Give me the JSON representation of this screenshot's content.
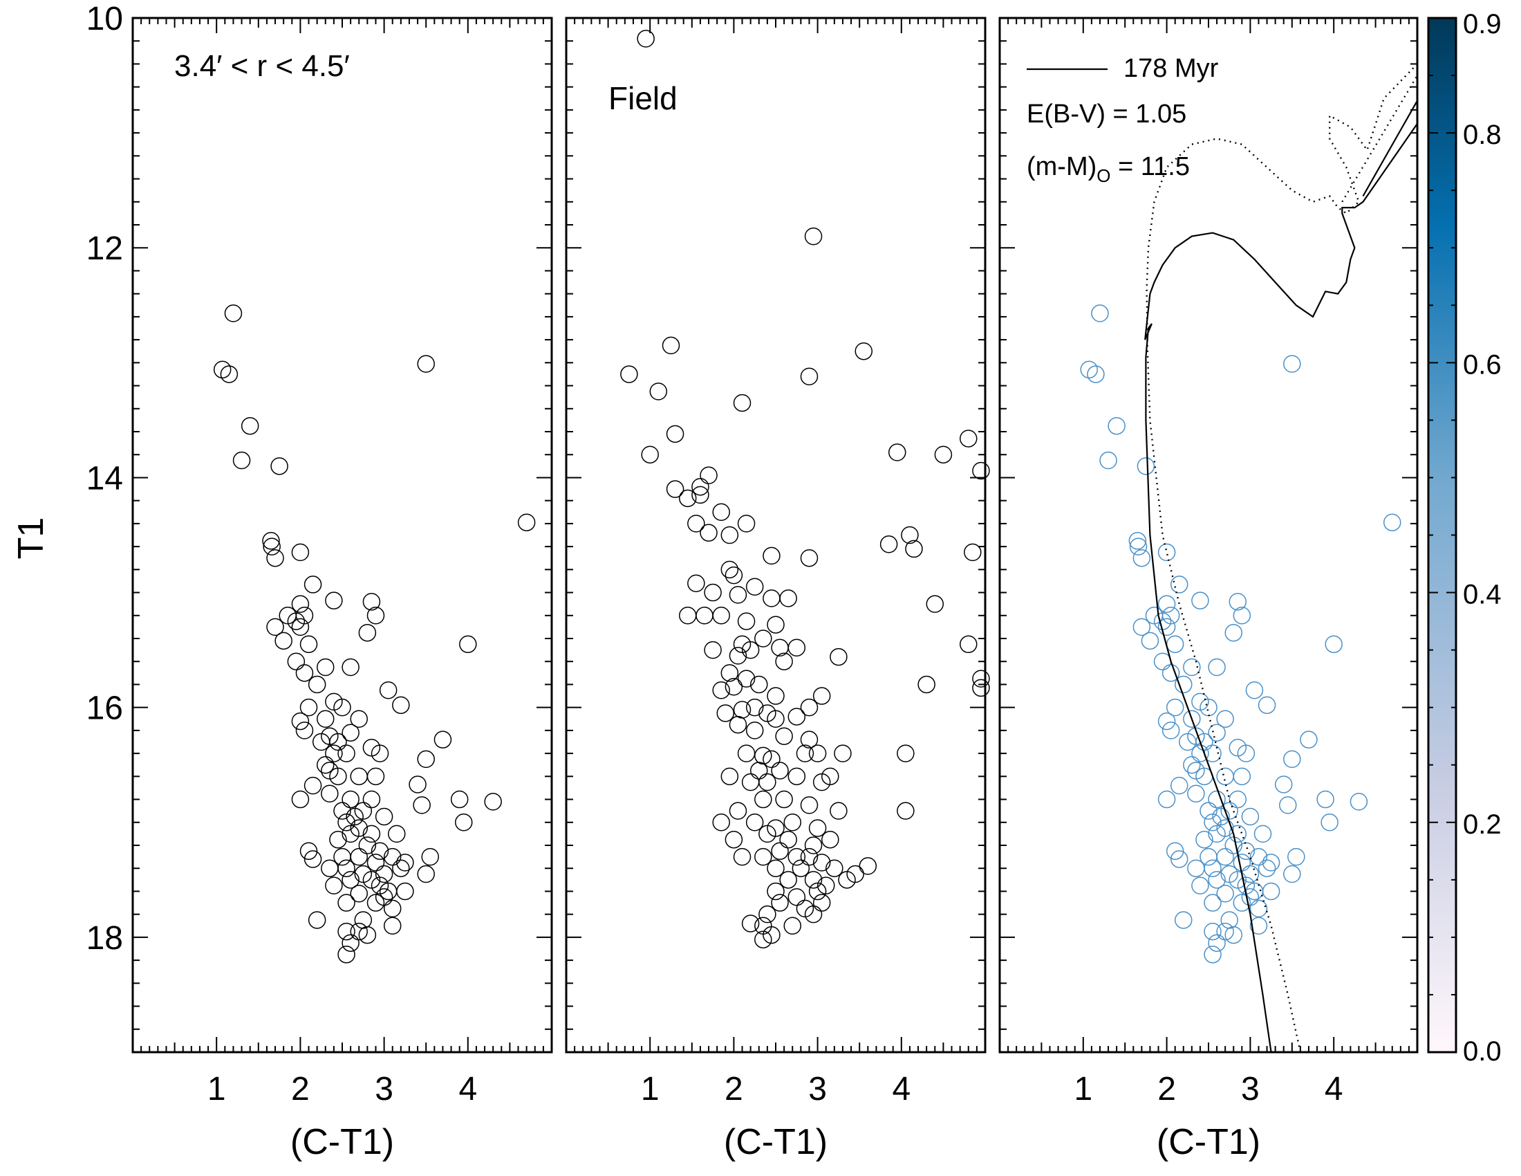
{
  "figure": {
    "ylabel": "T1"
  },
  "chart_data": [
    {
      "type": "scatter",
      "title": "",
      "annotation": "3.4′ < r < 4.5′",
      "xlabel": "(C-T1)",
      "ylabel": "T1",
      "xlim": [
        0,
        5
      ],
      "ylim": [
        19,
        10
      ],
      "xticks": [
        1,
        2,
        3,
        4
      ],
      "yticks": [
        10,
        12,
        14,
        16,
        18
      ],
      "points": [
        [
          1.2,
          12.57
        ],
        [
          1.07,
          13.06
        ],
        [
          1.15,
          13.1
        ],
        [
          1.4,
          13.55
        ],
        [
          1.3,
          13.85
        ],
        [
          1.75,
          13.9
        ],
        [
          3.5,
          13.01
        ],
        [
          4.7,
          14.39
        ],
        [
          1.65,
          14.55
        ],
        [
          1.66,
          14.6
        ],
        [
          1.7,
          14.7
        ],
        [
          2.0,
          14.65
        ],
        [
          2.15,
          14.93
        ],
        [
          2.0,
          15.1
        ],
        [
          2.4,
          15.07
        ],
        [
          2.85,
          15.08
        ],
        [
          1.95,
          15.25
        ],
        [
          2.05,
          15.2
        ],
        [
          2.9,
          15.2
        ],
        [
          1.7,
          15.3
        ],
        [
          1.85,
          15.2
        ],
        [
          2.0,
          15.3
        ],
        [
          1.8,
          15.42
        ],
        [
          2.1,
          15.45
        ],
        [
          2.8,
          15.35
        ],
        [
          4.0,
          15.45
        ],
        [
          1.95,
          15.6
        ],
        [
          2.05,
          15.7
        ],
        [
          2.3,
          15.65
        ],
        [
          2.6,
          15.65
        ],
        [
          2.2,
          15.8
        ],
        [
          3.05,
          15.85
        ],
        [
          3.2,
          15.98
        ],
        [
          2.4,
          15.95
        ],
        [
          2.1,
          16.0
        ],
        [
          2.3,
          16.1
        ],
        [
          2.5,
          16.0
        ],
        [
          2.7,
          16.1
        ],
        [
          2.0,
          16.12
        ],
        [
          2.05,
          16.2
        ],
        [
          2.25,
          16.3
        ],
        [
          2.35,
          16.25
        ],
        [
          2.45,
          16.3
        ],
        [
          2.6,
          16.22
        ],
        [
          2.85,
          16.35
        ],
        [
          2.95,
          16.4
        ],
        [
          3.7,
          16.28
        ],
        [
          2.4,
          16.4
        ],
        [
          2.55,
          16.4
        ],
        [
          3.5,
          16.45
        ],
        [
          2.3,
          16.5
        ],
        [
          2.35,
          16.55
        ],
        [
          2.45,
          16.6
        ],
        [
          2.7,
          16.6
        ],
        [
          2.9,
          16.6
        ],
        [
          2.15,
          16.68
        ],
        [
          3.4,
          16.67
        ],
        [
          2.0,
          16.8
        ],
        [
          2.35,
          16.75
        ],
        [
          2.6,
          16.8
        ],
        [
          2.85,
          16.8
        ],
        [
          3.45,
          16.85
        ],
        [
          3.9,
          16.8
        ],
        [
          4.3,
          16.82
        ],
        [
          2.5,
          16.9
        ],
        [
          2.65,
          16.95
        ],
        [
          2.75,
          16.9
        ],
        [
          3.0,
          16.95
        ],
        [
          2.55,
          17.0
        ],
        [
          2.7,
          17.05
        ],
        [
          2.85,
          17.1
        ],
        [
          3.15,
          17.1
        ],
        [
          3.95,
          17.0
        ],
        [
          2.45,
          17.15
        ],
        [
          2.6,
          17.1
        ],
        [
          2.8,
          17.2
        ],
        [
          2.95,
          17.25
        ],
        [
          2.1,
          17.25
        ],
        [
          2.15,
          17.32
        ],
        [
          2.5,
          17.3
        ],
        [
          2.7,
          17.3
        ],
        [
          2.9,
          17.35
        ],
        [
          3.1,
          17.3
        ],
        [
          3.25,
          17.35
        ],
        [
          3.55,
          17.3
        ],
        [
          2.35,
          17.4
        ],
        [
          2.55,
          17.4
        ],
        [
          2.75,
          17.45
        ],
        [
          3.0,
          17.45
        ],
        [
          3.2,
          17.4
        ],
        [
          3.5,
          17.45
        ],
        [
          2.6,
          17.5
        ],
        [
          2.85,
          17.5
        ],
        [
          2.95,
          17.55
        ],
        [
          3.05,
          17.6
        ],
        [
          2.4,
          17.55
        ],
        [
          2.7,
          17.62
        ],
        [
          3.0,
          17.65
        ],
        [
          3.25,
          17.6
        ],
        [
          2.55,
          17.7
        ],
        [
          2.9,
          17.7
        ],
        [
          3.1,
          17.75
        ],
        [
          2.2,
          17.85
        ],
        [
          2.75,
          17.85
        ],
        [
          3.1,
          17.9
        ],
        [
          2.55,
          17.95
        ],
        [
          2.7,
          17.95
        ],
        [
          2.8,
          17.98
        ],
        [
          2.6,
          18.05
        ],
        [
          2.55,
          18.15
        ]
      ]
    },
    {
      "type": "scatter",
      "title": "",
      "annotation": "Field",
      "xlabel": "(C-T1)",
      "ylabel": "T1",
      "xlim": [
        0,
        5
      ],
      "ylim": [
        19,
        10
      ],
      "xticks": [
        1,
        2,
        3,
        4
      ],
      "yticks": [
        10,
        12,
        14,
        16,
        18
      ],
      "points": [
        [
          0.95,
          10.18
        ],
        [
          2.95,
          11.9
        ],
        [
          1.25,
          12.85
        ],
        [
          3.55,
          12.9
        ],
        [
          0.75,
          13.1
        ],
        [
          2.9,
          13.12
        ],
        [
          1.1,
          13.25
        ],
        [
          2.1,
          13.35
        ],
        [
          1.3,
          13.62
        ],
        [
          4.8,
          13.66
        ],
        [
          1.0,
          13.8
        ],
        [
          3.95,
          13.78
        ],
        [
          4.5,
          13.8
        ],
        [
          4.95,
          13.94
        ],
        [
          1.7,
          13.98
        ],
        [
          1.6,
          14.08
        ],
        [
          1.3,
          14.1
        ],
        [
          1.45,
          14.18
        ],
        [
          1.6,
          14.15
        ],
        [
          1.85,
          14.3
        ],
        [
          2.15,
          14.4
        ],
        [
          1.55,
          14.4
        ],
        [
          1.7,
          14.48
        ],
        [
          1.95,
          14.5
        ],
        [
          2.45,
          14.68
        ],
        [
          2.9,
          14.7
        ],
        [
          3.85,
          14.58
        ],
        [
          4.1,
          14.5
        ],
        [
          4.15,
          14.62
        ],
        [
          4.85,
          14.65
        ],
        [
          1.55,
          14.92
        ],
        [
          1.95,
          14.8
        ],
        [
          2.0,
          14.85
        ],
        [
          2.25,
          14.95
        ],
        [
          2.45,
          15.05
        ],
        [
          2.65,
          15.05
        ],
        [
          1.75,
          15.0
        ],
        [
          1.85,
          15.2
        ],
        [
          2.05,
          15.02
        ],
        [
          1.45,
          15.2
        ],
        [
          1.65,
          15.2
        ],
        [
          2.15,
          15.25
        ],
        [
          2.5,
          15.28
        ],
        [
          4.4,
          15.1
        ],
        [
          2.1,
          15.45
        ],
        [
          2.2,
          15.5
        ],
        [
          2.35,
          15.4
        ],
        [
          2.55,
          15.48
        ],
        [
          2.75,
          15.48
        ],
        [
          1.75,
          15.5
        ],
        [
          2.05,
          15.55
        ],
        [
          2.6,
          15.6
        ],
        [
          3.25,
          15.56
        ],
        [
          4.8,
          15.45
        ],
        [
          4.95,
          15.75
        ],
        [
          4.3,
          15.8
        ],
        [
          4.95,
          15.83
        ],
        [
          1.95,
          15.7
        ],
        [
          2.15,
          15.75
        ],
        [
          2.3,
          15.8
        ],
        [
          1.85,
          15.85
        ],
        [
          2.0,
          15.82
        ],
        [
          2.5,
          15.9
        ],
        [
          3.05,
          15.9
        ],
        [
          2.25,
          16.0
        ],
        [
          2.4,
          16.05
        ],
        [
          2.9,
          16.0
        ],
        [
          1.9,
          16.05
        ],
        [
          2.1,
          16.02
        ],
        [
          2.75,
          16.08
        ],
        [
          2.5,
          16.1
        ],
        [
          2.05,
          16.15
        ],
        [
          2.25,
          16.2
        ],
        [
          2.6,
          16.25
        ],
        [
          2.9,
          16.28
        ],
        [
          2.15,
          16.4
        ],
        [
          2.35,
          16.42
        ],
        [
          2.45,
          16.45
        ],
        [
          2.85,
          16.4
        ],
        [
          3.0,
          16.4
        ],
        [
          3.3,
          16.4
        ],
        [
          4.05,
          16.4
        ],
        [
          2.3,
          16.55
        ],
        [
          2.55,
          16.55
        ],
        [
          2.75,
          16.6
        ],
        [
          1.95,
          16.6
        ],
        [
          2.2,
          16.65
        ],
        [
          2.4,
          16.65
        ],
        [
          3.05,
          16.65
        ],
        [
          3.15,
          16.6
        ],
        [
          2.35,
          16.8
        ],
        [
          2.6,
          16.8
        ],
        [
          2.9,
          16.85
        ],
        [
          3.25,
          16.9
        ],
        [
          2.05,
          16.9
        ],
        [
          4.05,
          16.9
        ],
        [
          1.85,
          17.0
        ],
        [
          2.25,
          17.0
        ],
        [
          2.5,
          17.05
        ],
        [
          2.7,
          17.0
        ],
        [
          3.0,
          17.05
        ],
        [
          2.4,
          17.1
        ],
        [
          2.65,
          17.15
        ],
        [
          2.95,
          17.2
        ],
        [
          3.15,
          17.15
        ],
        [
          2.0,
          17.15
        ],
        [
          2.1,
          17.3
        ],
        [
          2.35,
          17.3
        ],
        [
          2.55,
          17.25
        ],
        [
          2.75,
          17.3
        ],
        [
          2.9,
          17.3
        ],
        [
          3.05,
          17.35
        ],
        [
          2.5,
          17.4
        ],
        [
          2.8,
          17.4
        ],
        [
          3.2,
          17.4
        ],
        [
          3.45,
          17.45
        ],
        [
          3.6,
          17.38
        ],
        [
          2.65,
          17.5
        ],
        [
          2.95,
          17.5
        ],
        [
          3.1,
          17.55
        ],
        [
          3.35,
          17.5
        ],
        [
          2.5,
          17.6
        ],
        [
          2.75,
          17.65
        ],
        [
          3.0,
          17.6
        ],
        [
          2.55,
          17.7
        ],
        [
          2.85,
          17.75
        ],
        [
          3.05,
          17.7
        ],
        [
          2.4,
          17.8
        ],
        [
          2.95,
          17.8
        ],
        [
          2.2,
          17.88
        ],
        [
          2.35,
          17.9
        ],
        [
          2.7,
          17.9
        ],
        [
          2.45,
          17.98
        ],
        [
          2.35,
          18.02
        ]
      ]
    },
    {
      "type": "scatter",
      "title": "",
      "xlabel": "(C-T1)",
      "ylabel": "T1",
      "xlim": [
        0,
        5
      ],
      "ylim": [
        19,
        10
      ],
      "xticks": [
        1,
        2,
        3,
        4
      ],
      "yticks": [
        10,
        12,
        14,
        16,
        18
      ],
      "legend": [
        {
          "label": "178 Myr",
          "style": "solid"
        },
        {
          "label": "E(B-V) = 1.05"
        },
        {
          "label_main": "(m-M)",
          "label_sub": "O",
          "label_rest": " = 11.5"
        }
      ],
      "point_source": "same stars as panel 1, colour-coded by membership probability",
      "marker_color": "#4a90c8",
      "isochrone_solid": {
        "x": [
          3.25,
          3.15,
          3.0,
          2.8,
          2.5,
          2.25,
          2.05,
          1.9,
          1.8,
          1.75,
          1.75,
          1.78,
          1.82,
          1.74,
          1.8,
          1.85,
          1.95,
          2.1,
          2.3,
          2.55,
          2.8,
          3.05,
          3.3,
          3.55,
          3.75,
          3.9,
          4.05,
          4.15,
          4.2,
          4.25,
          4.15,
          4.1,
          4.1,
          4.25,
          4.35,
          5.0
        ],
        "y": [
          19.0,
          18.5,
          17.8,
          17.1,
          16.5,
          16.0,
          15.6,
          15.2,
          14.5,
          13.5,
          12.95,
          12.7,
          12.66,
          12.8,
          12.4,
          12.3,
          12.15,
          12.0,
          11.9,
          11.87,
          11.93,
          12.1,
          12.3,
          12.5,
          12.6,
          12.38,
          12.4,
          12.3,
          12.1,
          12.0,
          11.8,
          11.7,
          11.65,
          11.65,
          11.6,
          10.92
        ],
        "branch2": {
          "x": [
            4.35,
            5.0
          ],
          "y": [
            11.55,
            10.72
          ]
        }
      },
      "isochrone_dotted": {
        "x": [
          3.6,
          3.45,
          3.25,
          3.0,
          2.75,
          2.55,
          2.35,
          2.15,
          1.95,
          1.8,
          1.77,
          1.76,
          1.78,
          1.85,
          2.0,
          2.3,
          2.6,
          2.9,
          3.2,
          3.5,
          3.75,
          3.95,
          4.05,
          4.15,
          4.3,
          4.15,
          3.95,
          3.95,
          4.2,
          4.4,
          4.6,
          5.0
        ],
        "y": [
          19.0,
          18.5,
          17.9,
          17.3,
          16.8,
          16.2,
          15.6,
          15.1,
          14.5,
          13.5,
          12.9,
          12.35,
          12.0,
          11.6,
          11.3,
          11.1,
          11.05,
          11.1,
          11.3,
          11.5,
          11.6,
          11.55,
          11.65,
          11.7,
          11.6,
          11.3,
          11.05,
          10.85,
          10.95,
          11.15,
          10.7,
          10.4
        ],
        "branch2": {
          "x": [
            4.1,
            5.0
          ],
          "y": [
            11.6,
            10.5
          ]
        }
      }
    }
  ],
  "colorbar": {
    "min": 0.0,
    "max": 0.9,
    "tick_labels": [
      "0.0",
      "0.2",
      "0.4",
      "0.6",
      "0.8",
      "0.9"
    ],
    "colors": {
      "low": "#fff7fb",
      "mid1": "#c9cee4",
      "mid2": "#74a9cf",
      "mid3": "#0570b0",
      "high": "#023858"
    }
  }
}
